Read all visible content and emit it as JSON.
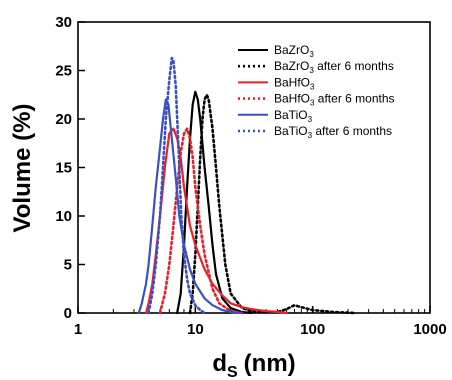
{
  "chart_data": {
    "type": "line",
    "xlabel": "d",
    "xlabel_sub": "S",
    "xlabel_unit": "(nm)",
    "ylabel": "Volume (%)",
    "xscale": "log",
    "xlim": [
      1,
      1000
    ],
    "ylim": [
      0,
      30
    ],
    "x_ticks": [
      1,
      10,
      100,
      1000
    ],
    "x_tick_labels": [
      "1",
      "10",
      "100",
      "1000"
    ],
    "y_ticks": [
      0,
      5,
      10,
      15,
      20,
      25,
      30
    ],
    "y_tick_labels": [
      "0",
      "5",
      "10",
      "15",
      "20",
      "25",
      "30"
    ],
    "legend_position": "top-right",
    "series": [
      {
        "name": "BaZrO3",
        "label_base": "BaZrO",
        "label_sub": "3",
        "label_suffix": "",
        "color": "#000000",
        "dash": "solid",
        "x": [
          7.0,
          7.5,
          8.0,
          8.5,
          9.0,
          9.5,
          10.0,
          10.5,
          11.0,
          12.0,
          13.0,
          14.0,
          15.0,
          17.0,
          20.0,
          25.0,
          30.0
        ],
        "y": [
          0,
          2,
          7,
          13,
          18,
          21.5,
          22.8,
          22,
          20,
          15,
          11,
          7,
          4,
          1.5,
          0.5,
          0.1,
          0
        ]
      },
      {
        "name": "BaZrO3 after 6 months",
        "label_base": "BaZrO",
        "label_sub": "3",
        "label_suffix": " after 6 months",
        "color": "#000000",
        "dash": "dotted",
        "x": [
          9.0,
          9.5,
          10.0,
          10.5,
          11.0,
          11.5,
          12.0,
          12.5,
          13.0,
          14.0,
          15.0,
          16.0,
          18.0,
          20.0,
          25.0,
          30.0,
          40.0,
          50.0,
          60.0,
          70.0,
          80.0,
          100.0,
          150.0,
          230.0
        ],
        "y": [
          0,
          2,
          6,
          11,
          16,
          20,
          22,
          22.5,
          22,
          19,
          15,
          11,
          5,
          2,
          0.5,
          0.2,
          0.1,
          0.1,
          0.4,
          0.8,
          0.6,
          0.3,
          0.1,
          0
        ]
      },
      {
        "name": "BaHfO3",
        "label_base": "BaHfO",
        "label_sub": "3",
        "label_suffix": "",
        "color": "#e8202a",
        "dash": "solid",
        "x": [
          3.8,
          4.0,
          4.3,
          4.6,
          5.0,
          5.5,
          6.0,
          6.5,
          7.0,
          7.5,
          8.0,
          9.0,
          10.0,
          12.0,
          14.0,
          17.0,
          20.0,
          25.0,
          30.0,
          40.0,
          50.0,
          60.0
        ],
        "y": [
          0,
          1,
          3,
          6,
          10,
          15,
          18.5,
          19,
          18,
          16,
          13,
          9,
          7,
          4.5,
          3,
          1.8,
          1,
          0.6,
          0.4,
          0.2,
          0.1,
          0
        ]
      },
      {
        "name": "BaHfO3 after 6 months",
        "label_base": "BaHfO",
        "label_sub": "3",
        "label_suffix": " after 6 months",
        "color": "#e8202a",
        "dash": "dotted",
        "x": [
          5.0,
          5.5,
          6.0,
          6.5,
          7.0,
          7.5,
          8.0,
          8.5,
          9.0,
          9.5,
          10.0,
          11.0,
          12.0,
          14.0,
          16.0,
          20.0,
          25.0
        ],
        "y": [
          0,
          2,
          5,
          9,
          13,
          16.5,
          18.5,
          19,
          18,
          16,
          13,
          9,
          6,
          2.5,
          1,
          0.2,
          0
        ]
      },
      {
        "name": "BaTiO3",
        "label_base": "BaTiO",
        "label_sub": "3",
        "label_suffix": "",
        "color": "#3b50c4",
        "dash": "solid",
        "x": [
          3.3,
          3.5,
          3.8,
          4.0,
          4.3,
          4.6,
          5.0,
          5.3,
          5.6,
          5.9,
          6.3,
          6.8,
          7.3,
          8.0,
          9.0,
          10.0,
          12.0,
          14.0,
          17.0,
          20.0,
          25.0
        ],
        "y": [
          0,
          1,
          3,
          5,
          9,
          13,
          17,
          20,
          22,
          21.5,
          18,
          14,
          10,
          7,
          4.5,
          3,
          1.5,
          0.8,
          0.3,
          0.1,
          0
        ]
      },
      {
        "name": "BaTiO3 after 6 months",
        "label_base": "BaTiO",
        "label_sub": "3",
        "label_suffix": " after 6 months",
        "color": "#3b50c4",
        "dash": "dotted",
        "x": [
          4.0,
          4.3,
          4.6,
          5.0,
          5.3,
          5.6,
          6.0,
          6.3,
          6.5,
          6.8,
          7.0,
          7.3,
          7.6,
          8.0,
          8.5,
          9.0,
          10.0,
          11.0,
          12.0
        ],
        "y": [
          0,
          2,
          5,
          10,
          15,
          20,
          24,
          26.3,
          26,
          23.5,
          20,
          15,
          10,
          6,
          3.5,
          2,
          0.8,
          0.3,
          0
        ]
      }
    ]
  }
}
